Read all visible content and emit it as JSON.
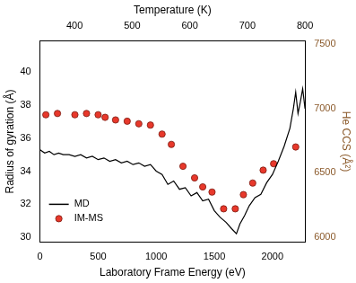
{
  "chart_data": {
    "type": "line",
    "x_label": "Laboratory Frame Energy (eV)",
    "x2_label": "Temperature (K)",
    "y_label": "Radius of gyration (Å)",
    "y2_label": "He CCS (Å²)",
    "xlim": [
      0,
      2280
    ],
    "xticks": [
      0,
      500,
      1000,
      1500,
      2000
    ],
    "x2lim": [
      340,
      800
    ],
    "x2ticks": [
      400,
      500,
      600,
      700,
      800
    ],
    "ylim": [
      29.7,
      41.9
    ],
    "yticks": [
      30,
      32,
      34,
      36,
      38,
      40
    ],
    "y2lim": [
      5962,
      7523
    ],
    "y2ticks": [
      6000,
      6500,
      7000,
      7500
    ],
    "grid": false,
    "legend": "bottom-left",
    "series": [
      {
        "name": "MD",
        "type": "line",
        "color": "#000000",
        "line_style": "solid",
        "x": [
          0,
          40,
          80,
          120,
          160,
          200,
          250,
          300,
          350,
          400,
          450,
          500,
          550,
          600,
          650,
          700,
          750,
          800,
          850,
          900,
          950,
          1000,
          1050,
          1100,
          1150,
          1200,
          1250,
          1300,
          1350,
          1400,
          1450,
          1500,
          1550,
          1600,
          1650,
          1690,
          1720,
          1760,
          1800,
          1850,
          1900,
          1950,
          2000,
          2050,
          2100,
          2150,
          2180,
          2200,
          2220,
          2240,
          2260,
          2280
        ],
        "values": [
          35.3,
          35.1,
          35.2,
          35.0,
          35.1,
          35.0,
          35.0,
          34.9,
          35.0,
          34.8,
          34.9,
          34.7,
          34.8,
          34.6,
          34.7,
          34.5,
          34.6,
          34.4,
          34.5,
          34.3,
          34.4,
          34.0,
          33.8,
          33.2,
          33.4,
          32.9,
          33.0,
          32.5,
          32.7,
          32.2,
          32.3,
          31.6,
          31.2,
          30.9,
          30.5,
          30.2,
          30.8,
          31.3,
          31.9,
          32.4,
          32.6,
          33.3,
          33.8,
          34.6,
          35.5,
          36.6,
          37.8,
          38.8,
          37.5,
          38.2,
          39.0,
          37.8
        ]
      },
      {
        "name": "IM-MS",
        "type": "scatter",
        "color": "#e8382b",
        "marker": "circle",
        "axis": "y2",
        "x": [
          50,
          150,
          300,
          400,
          500,
          560,
          650,
          750,
          850,
          950,
          1050,
          1130,
          1230,
          1330,
          1400,
          1480,
          1580,
          1680,
          1750,
          1830,
          1920,
          2010,
          2200
        ],
        "values": [
          6950,
          6960,
          6950,
          6960,
          6950,
          6930,
          6910,
          6900,
          6880,
          6870,
          6800,
          6720,
          6550,
          6460,
          6390,
          6350,
          6220,
          6220,
          6330,
          6420,
          6520,
          6570,
          6700
        ]
      }
    ]
  }
}
